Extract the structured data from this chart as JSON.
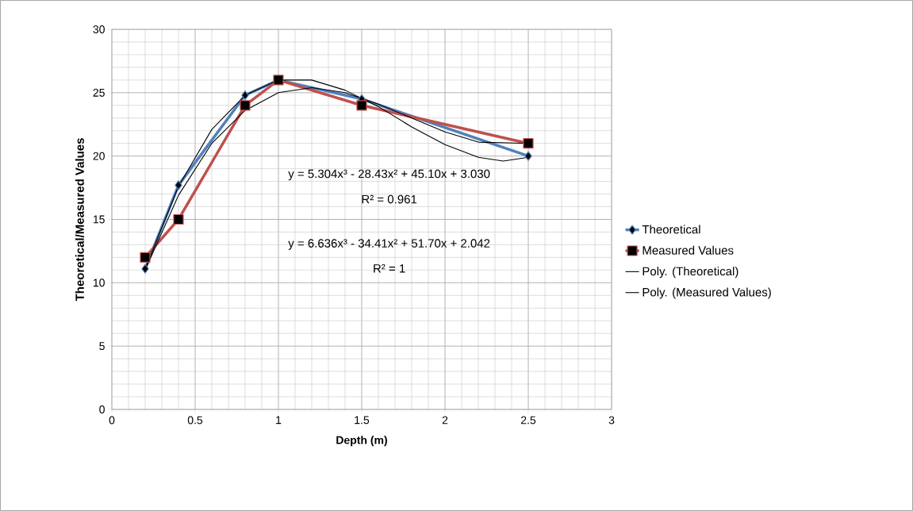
{
  "chart_data": {
    "type": "line",
    "xlabel": "Depth (m)",
    "ylabel": "Theoretical/Measured Values",
    "xlim": [
      0,
      3
    ],
    "xticks": [
      0,
      0.5,
      1,
      1.5,
      2,
      2.5,
      3
    ],
    "ylim": [
      0,
      30
    ],
    "yticks": [
      0,
      5,
      10,
      15,
      20,
      25,
      30
    ],
    "grid": true,
    "legend": "right",
    "series": [
      {
        "name": "Theoretical",
        "color": "#4f81bd",
        "marker": "diamond",
        "x": [
          0.2,
          0.4,
          0.8,
          1,
          1.5,
          2.5
        ],
        "values": [
          11.1,
          17.7,
          24.8,
          26,
          24.5,
          20
        ]
      },
      {
        "name": "Measured Values",
        "color": "#c0504d",
        "marker": "square",
        "x": [
          0.2,
          0.4,
          0.8,
          1,
          1.5,
          2.5
        ],
        "values": [
          12,
          15,
          24,
          26,
          24,
          21
        ]
      },
      {
        "name": "Poly. (Theoretical)",
        "color": "#000000",
        "marker": "none",
        "x": [
          0.2,
          0.4,
          0.6,
          0.8,
          1,
          1.2,
          1.4,
          1.6,
          1.8,
          2,
          2.2,
          2.35,
          2.5
        ],
        "values": [
          11.1,
          17.6,
          22.1,
          24.8,
          26,
          26,
          25.2,
          23.9,
          22.3,
          20.9,
          19.9,
          19.6,
          19.9
        ]
      },
      {
        "name": "Poly. (Measured Values)",
        "color": "#000000",
        "marker": "none",
        "x": [
          0.2,
          0.4,
          0.6,
          0.8,
          1,
          1.2,
          1.4,
          1.6,
          1.8,
          2,
          2.2,
          2.5
        ],
        "values": [
          11,
          16.9,
          21,
          23.6,
          25,
          25.4,
          25,
          24.1,
          23,
          21.9,
          21.1,
          21
        ]
      }
    ],
    "annotations": [
      "y = 5.304x³ - 28.43x² + 45.10x + 3.030",
      "R² = 0.961",
      "y = 6.636x³ - 34.41x² + 51.70x + 2.042",
      "R² = 1"
    ]
  }
}
